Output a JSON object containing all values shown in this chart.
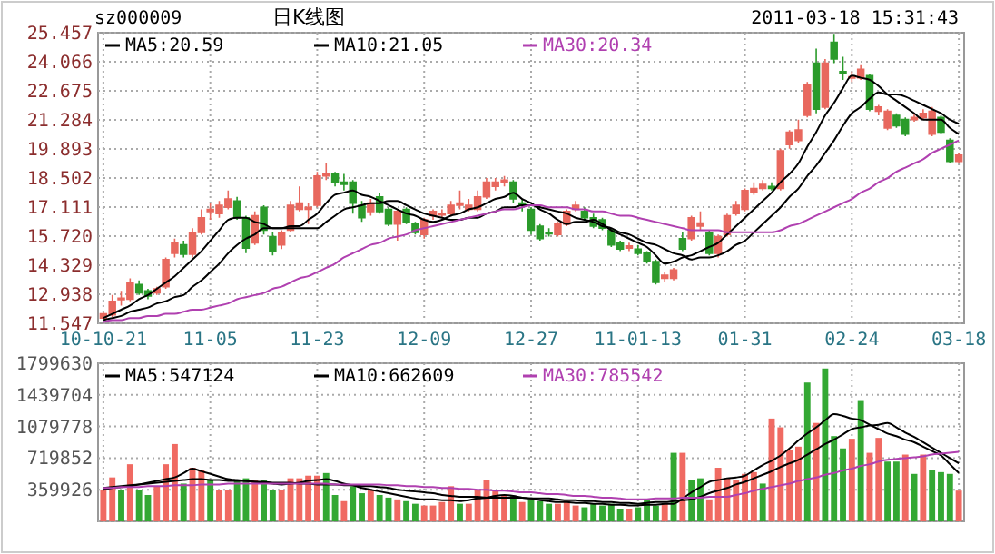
{
  "chart_data": [
    {
      "type": "candlestick",
      "title": "日K线图",
      "annotations": [
        "sz000009",
        "2011-03-18 15:31:43"
      ],
      "categories": [
        "10-10-21",
        null,
        null,
        null,
        null,
        null,
        null,
        null,
        null,
        null,
        null,
        null,
        "11-05",
        null,
        null,
        null,
        null,
        null,
        null,
        null,
        null,
        null,
        null,
        null,
        "11-23",
        null,
        null,
        null,
        null,
        null,
        null,
        null,
        null,
        null,
        null,
        null,
        "12-09",
        null,
        null,
        null,
        null,
        null,
        null,
        null,
        null,
        null,
        null,
        null,
        "12-27",
        null,
        null,
        null,
        null,
        null,
        null,
        null,
        null,
        null,
        null,
        null,
        "11-01-13",
        null,
        null,
        null,
        null,
        null,
        null,
        null,
        null,
        null,
        null,
        null,
        "01-31",
        null,
        null,
        null,
        null,
        null,
        null,
        null,
        null,
        null,
        null,
        null,
        "02-24",
        null,
        null,
        null,
        null,
        null,
        null,
        null,
        null,
        null,
        null,
        null,
        "03-18"
      ],
      "ohlc": [
        [
          11.8,
          12.1,
          11.7,
          12.0
        ],
        [
          11.95,
          12.9,
          11.85,
          12.6
        ],
        [
          12.7,
          13.1,
          12.4,
          12.75
        ],
        [
          12.7,
          13.7,
          12.6,
          13.5
        ],
        [
          13.4,
          13.6,
          12.9,
          13.0
        ],
        [
          13.1,
          13.2,
          12.7,
          12.85
        ],
        [
          13.0,
          13.3,
          12.9,
          13.2
        ],
        [
          13.3,
          14.7,
          13.2,
          14.6
        ],
        [
          14.9,
          15.6,
          14.7,
          15.4
        ],
        [
          15.3,
          15.5,
          14.7,
          14.85
        ],
        [
          14.85,
          16.1,
          14.7,
          15.9
        ],
        [
          15.9,
          17.0,
          15.8,
          16.6
        ],
        [
          16.9,
          17.3,
          16.5,
          17.0
        ],
        [
          16.8,
          17.4,
          16.6,
          17.2
        ],
        [
          17.1,
          17.9,
          17.0,
          17.5
        ],
        [
          17.4,
          17.6,
          16.5,
          16.6
        ],
        [
          16.6,
          16.7,
          14.9,
          15.15
        ],
        [
          15.4,
          16.9,
          15.3,
          16.7
        ],
        [
          17.1,
          17.2,
          15.8,
          16.0
        ],
        [
          15.7,
          15.9,
          14.8,
          15.0
        ],
        [
          15.3,
          16.0,
          15.1,
          15.9
        ],
        [
          16.0,
          17.4,
          15.9,
          17.2
        ],
        [
          17.0,
          18.1,
          16.9,
          17.3
        ],
        [
          17.0,
          17.3,
          16.3,
          17.1
        ],
        [
          17.2,
          18.8,
          17.1,
          18.6
        ],
        [
          18.6,
          19.2,
          18.4,
          18.7
        ],
        [
          18.7,
          18.8,
          18.1,
          18.3
        ],
        [
          18.3,
          18.7,
          17.9,
          18.2
        ],
        [
          18.3,
          18.4,
          16.8,
          17.3
        ],
        [
          17.2,
          17.4,
          16.4,
          16.6
        ],
        [
          16.9,
          17.5,
          16.7,
          17.3
        ],
        [
          17.6,
          17.8,
          16.8,
          16.9
        ],
        [
          17.0,
          17.1,
          16.2,
          16.3
        ],
        [
          16.3,
          17.0,
          15.5,
          16.9
        ],
        [
          17.0,
          17.1,
          16.3,
          16.4
        ],
        [
          16.3,
          16.4,
          15.8,
          15.9
        ],
        [
          15.8,
          16.6,
          15.6,
          16.5
        ],
        [
          16.7,
          17.0,
          16.5,
          16.9
        ],
        [
          16.75,
          17.0,
          16.6,
          16.8
        ],
        [
          16.8,
          17.4,
          16.7,
          17.2
        ],
        [
          17.2,
          17.9,
          17.0,
          17.3
        ],
        [
          17.0,
          17.5,
          16.9,
          17.2
        ],
        [
          17.0,
          17.9,
          16.9,
          17.6
        ],
        [
          17.6,
          18.5,
          17.5,
          18.3
        ],
        [
          18.1,
          18.5,
          17.9,
          18.3
        ],
        [
          18.3,
          18.6,
          18.1,
          18.4
        ],
        [
          18.3,
          18.4,
          17.3,
          17.5
        ],
        [
          17.3,
          17.5,
          16.9,
          17.2
        ],
        [
          17.0,
          17.1,
          15.8,
          16.0
        ],
        [
          16.2,
          16.3,
          15.5,
          15.6
        ],
        [
          15.9,
          16.1,
          15.7,
          15.85
        ],
        [
          15.8,
          16.4,
          15.7,
          16.3
        ],
        [
          16.3,
          17.0,
          16.2,
          16.9
        ],
        [
          17.0,
          17.4,
          16.9,
          17.2
        ],
        [
          16.9,
          17.1,
          16.5,
          16.6
        ],
        [
          16.6,
          16.8,
          16.1,
          16.2
        ],
        [
          16.5,
          16.6,
          16.0,
          16.1
        ],
        [
          16.0,
          16.1,
          15.2,
          15.3
        ],
        [
          15.4,
          15.5,
          15.0,
          15.1
        ],
        [
          15.15,
          15.4,
          15.0,
          15.25
        ],
        [
          15.1,
          15.3,
          14.8,
          14.9
        ],
        [
          14.9,
          15.0,
          14.4,
          14.5
        ],
        [
          14.5,
          14.6,
          13.4,
          13.5
        ],
        [
          13.7,
          14.0,
          13.5,
          13.85
        ],
        [
          13.7,
          14.2,
          13.6,
          14.1
        ],
        [
          15.6,
          15.9,
          15.0,
          15.1
        ],
        [
          15.6,
          16.7,
          15.5,
          16.6
        ],
        [
          16.2,
          16.9,
          16.0,
          16.35
        ],
        [
          15.9,
          16.0,
          14.8,
          14.9
        ],
        [
          14.9,
          15.8,
          14.7,
          15.7
        ],
        [
          15.8,
          16.8,
          15.7,
          16.7
        ],
        [
          16.8,
          17.4,
          16.7,
          17.2
        ],
        [
          17.0,
          18.0,
          16.9,
          17.9
        ],
        [
          17.8,
          18.3,
          17.7,
          18.0
        ],
        [
          18.0,
          18.4,
          17.9,
          18.2
        ],
        [
          18.1,
          18.3,
          17.9,
          18.0
        ],
        [
          18.0,
          19.9,
          17.9,
          19.8
        ],
        [
          20.1,
          20.8,
          19.9,
          20.7
        ],
        [
          20.3,
          21.3,
          20.2,
          20.8
        ],
        [
          21.5,
          23.1,
          21.4,
          22.95
        ],
        [
          24.0,
          24.7,
          21.6,
          21.8
        ],
        [
          21.9,
          24.2,
          21.8,
          24.0
        ],
        [
          25.0,
          25.4,
          24.0,
          24.2
        ],
        [
          23.6,
          24.3,
          23.2,
          23.5
        ],
        [
          23.3,
          23.6,
          23.1,
          23.35
        ],
        [
          23.3,
          23.9,
          23.2,
          23.7
        ],
        [
          23.4,
          23.5,
          21.7,
          21.8
        ],
        [
          21.7,
          22.0,
          21.5,
          21.9
        ],
        [
          20.9,
          21.8,
          20.8,
          21.7
        ],
        [
          21.5,
          21.6,
          20.9,
          21.0
        ],
        [
          21.3,
          21.4,
          20.5,
          20.6
        ],
        [
          21.3,
          21.6,
          21.2,
          21.4
        ],
        [
          21.4,
          21.8,
          21.3,
          21.6
        ],
        [
          20.6,
          21.9,
          20.5,
          21.7
        ],
        [
          21.4,
          21.5,
          20.6,
          20.7
        ],
        [
          20.3,
          20.4,
          19.2,
          19.3
        ],
        [
          19.3,
          19.7,
          19.2,
          19.6
        ]
      ],
      "colors": [
        "#e8685e",
        "#e8685e",
        "#e8685e",
        "#e8685e",
        "#2b9b2b",
        "#2b9b2b",
        "#e8685e",
        "#e8685e",
        "#e8685e",
        "#2b9b2b",
        "#e8685e",
        "#e8685e",
        "#e8685e",
        "#e8685e",
        "#e8685e",
        "#2b9b2b",
        "#2b9b2b",
        "#e8685e",
        "#2b9b2b",
        "#2b9b2b",
        "#e8685e",
        "#e8685e",
        "#e8685e",
        "#e8685e",
        "#e8685e",
        "#e8685e",
        "#2b9b2b",
        "#2b9b2b",
        "#2b9b2b",
        "#2b9b2b",
        "#e8685e",
        "#2b9b2b",
        "#2b9b2b",
        "#e8685e",
        "#2b9b2b",
        "#2b9b2b",
        "#e8685e",
        "#e8685e",
        "#e8685e",
        "#e8685e",
        "#e8685e",
        "#e8685e",
        "#e8685e",
        "#e8685e",
        "#e8685e",
        "#e8685e",
        "#2b9b2b",
        "#2b9b2b",
        "#2b9b2b",
        "#2b9b2b",
        "#2b9b2b",
        "#e8685e",
        "#e8685e",
        "#e8685e",
        "#2b9b2b",
        "#2b9b2b",
        "#2b9b2b",
        "#2b9b2b",
        "#2b9b2b",
        "#e8685e",
        "#2b9b2b",
        "#2b9b2b",
        "#2b9b2b",
        "#e8685e",
        "#e8685e",
        "#2b9b2b",
        "#e8685e",
        "#e8685e",
        "#2b9b2b",
        "#e8685e",
        "#e8685e",
        "#e8685e",
        "#e8685e",
        "#e8685e",
        "#e8685e",
        "#2b9b2b",
        "#e8685e",
        "#e8685e",
        "#e8685e",
        "#e8685e",
        "#2b9b2b",
        "#e8685e",
        "#2b9b2b",
        "#2b9b2b",
        "#e8685e",
        "#e8685e",
        "#2b9b2b",
        "#e8685e",
        "#e8685e",
        "#2b9b2b",
        "#2b9b2b",
        "#e8685e",
        "#e8685e",
        "#e8685e",
        "#2b9b2b",
        "#2b9b2b",
        "#e8685e"
      ],
      "series": [
        {
          "type": "line",
          "name": "MA5:20.59",
          "color": "#000000",
          "values": [
            11.8,
            12.0,
            12.2,
            12.4,
            12.7,
            12.9,
            13.2,
            13.5,
            13.8,
            14.2,
            14.6,
            15.0,
            15.5,
            16.0,
            16.5,
            16.6,
            16.6,
            16.4,
            16.3,
            16.1,
            16.1,
            16.2,
            16.2,
            16.5,
            16.8,
            17.3,
            17.7,
            17.8,
            17.9,
            17.7,
            17.6,
            17.4,
            17.2,
            17.0,
            16.8,
            16.7,
            16.5,
            16.4,
            16.5,
            16.7,
            16.8,
            17.0,
            17.1,
            17.3,
            17.5,
            17.6,
            17.8,
            17.5,
            17.3,
            17.0,
            16.8,
            16.5,
            16.3,
            16.4,
            16.4,
            16.5,
            16.3,
            16.0,
            15.8,
            15.6,
            15.4,
            15.2,
            14.8,
            14.4,
            14.5,
            14.7,
            14.8,
            15.0,
            15.2,
            15.4,
            15.8,
            16.2,
            16.6,
            17.0,
            17.4,
            17.8,
            18.3,
            18.7,
            19.2,
            20.0,
            20.7,
            21.5,
            22.1,
            22.8,
            23.4,
            23.3,
            23.2,
            22.9,
            22.5,
            22.2,
            21.9,
            21.6,
            21.3,
            21.3,
            21.3,
            20.9,
            20.6
          ]
        },
        {
          "type": "line",
          "name": "MA10:21.05",
          "color": "#000000",
          "values": [
            11.7,
            11.8,
            11.9,
            12.1,
            12.2,
            12.3,
            12.5,
            12.6,
            12.8,
            12.9,
            13.3,
            13.6,
            14.0,
            14.4,
            14.9,
            15.3,
            15.6,
            15.8,
            16.1,
            16.1,
            16.1,
            16.1,
            16.1,
            16.1,
            16.1,
            16.4,
            16.7,
            17.0,
            17.1,
            17.2,
            17.3,
            17.3,
            17.4,
            17.4,
            17.2,
            17.0,
            16.8,
            16.7,
            16.6,
            16.5,
            16.5,
            16.6,
            16.6,
            16.8,
            16.9,
            17.1,
            17.1,
            17.2,
            17.2,
            17.1,
            17.0,
            16.9,
            16.8,
            16.6,
            16.5,
            16.4,
            16.2,
            16.1,
            15.9,
            15.8,
            15.6,
            15.4,
            15.3,
            15.1,
            14.9,
            14.8,
            14.6,
            14.7,
            14.7,
            14.8,
            15.0,
            15.3,
            15.5,
            15.9,
            16.3,
            16.7,
            17.1,
            17.6,
            18.0,
            18.6,
            19.1,
            19.7,
            20.3,
            21.0,
            21.6,
            21.9,
            22.3,
            22.6,
            22.5,
            22.5,
            22.4,
            22.2,
            22.0,
            21.8,
            21.6,
            21.3,
            21.1
          ]
        },
        {
          "type": "line",
          "name": "MA30:20.34",
          "color": "#b040b0",
          "values": [
            11.6,
            11.7,
            11.7,
            11.8,
            11.8,
            11.9,
            11.9,
            12.0,
            12.0,
            12.1,
            12.2,
            12.2,
            12.3,
            12.4,
            12.5,
            12.7,
            12.8,
            12.9,
            13.0,
            13.2,
            13.3,
            13.5,
            13.7,
            13.8,
            14.0,
            14.2,
            14.4,
            14.7,
            14.9,
            15.1,
            15.3,
            15.4,
            15.6,
            15.7,
            15.8,
            16.0,
            16.1,
            16.2,
            16.3,
            16.4,
            16.5,
            16.6,
            16.7,
            16.8,
            16.9,
            17.0,
            17.0,
            17.1,
            17.2,
            17.2,
            17.1,
            17.1,
            17.1,
            17.0,
            17.0,
            16.9,
            16.9,
            16.8,
            16.7,
            16.7,
            16.6,
            16.5,
            16.4,
            16.3,
            16.2,
            16.1,
            16.0,
            16.0,
            16.0,
            16.0,
            15.9,
            15.9,
            15.9,
            15.9,
            15.9,
            15.9,
            16.0,
            16.2,
            16.3,
            16.5,
            16.7,
            16.9,
            17.1,
            17.3,
            17.5,
            17.8,
            18.0,
            18.3,
            18.5,
            18.8,
            19.0,
            19.2,
            19.4,
            19.7,
            19.9,
            20.1,
            20.3
          ]
        }
      ],
      "ylim": [
        11.547,
        25.457
      ],
      "yticks": [
        11.547,
        12.938,
        14.329,
        {
          "value": 15.72,
          "label": "15.720"
        },
        17.111,
        18.502,
        19.893,
        21.284,
        22.675,
        24.066,
        25.457
      ],
      "grid": true,
      "legend": "top"
    },
    {
      "type": "bar",
      "categories": [
        null,
        null,
        null,
        null,
        null,
        null,
        null,
        null,
        null,
        null,
        null,
        null,
        null,
        null,
        null,
        null,
        null,
        null,
        null,
        null,
        null,
        null,
        null,
        null,
        null,
        null,
        null,
        null,
        null,
        null,
        null,
        null,
        null,
        null,
        null,
        null,
        null,
        null,
        null,
        null,
        null,
        null,
        null,
        null,
        null,
        null,
        null,
        null,
        null,
        null,
        null,
        null,
        null,
        null,
        null,
        null,
        null,
        null,
        null,
        null,
        null,
        null,
        null,
        null,
        null,
        null,
        null,
        null,
        null,
        null,
        null,
        null,
        null,
        null,
        null,
        null,
        null,
        null,
        null,
        null,
        null,
        null,
        null,
        null,
        null,
        null,
        null,
        null,
        null,
        null,
        null,
        null,
        null,
        null,
        null,
        null,
        null
      ],
      "values": [
        360000,
        500000,
        360000,
        650000,
        360000,
        300000,
        400000,
        650000,
        880000,
        430000,
        610000,
        580000,
        470000,
        360000,
        360000,
        470000,
        490000,
        470000,
        470000,
        360000,
        360000,
        490000,
        490000,
        520000,
        520000,
        550000,
        300000,
        230000,
        400000,
        320000,
        360000,
        300000,
        270000,
        250000,
        230000,
        200000,
        180000,
        180000,
        220000,
        400000,
        200000,
        200000,
        360000,
        470000,
        360000,
        300000,
        290000,
        220000,
        250000,
        230000,
        200000,
        200000,
        230000,
        180000,
        160000,
        200000,
        180000,
        200000,
        140000,
        140000,
        160000,
        250000,
        180000,
        200000,
        780000,
        780000,
        470000,
        490000,
        250000,
        610000,
        490000,
        470000,
        540000,
        560000,
        430000,
        1170000,
        1070000,
        810000,
        850000,
        1580000,
        1120000,
        1740000,
        970000,
        830000,
        940000,
        1380000,
        780000,
        950000,
        680000,
        680000,
        760000,
        540000,
        760000,
        580000,
        560000,
        540000,
        350000
      ],
      "colors": [
        "#f06a62",
        "#f06a62",
        "#33a833",
        "#f06a62",
        "#33a833",
        "#33a833",
        "#f06a62",
        "#f06a62",
        "#f06a62",
        "#33a833",
        "#f06a62",
        "#f06a62",
        "#33a833",
        "#f06a62",
        "#f06a62",
        "#33a833",
        "#33a833",
        "#f06a62",
        "#33a833",
        "#33a833",
        "#f06a62",
        "#f06a62",
        "#f06a62",
        "#f06a62",
        "#f06a62",
        "#33a833",
        "#33a833",
        "#f06a62",
        "#33a833",
        "#33a833",
        "#f06a62",
        "#33a833",
        "#33a833",
        "#f06a62",
        "#33a833",
        "#33a833",
        "#f06a62",
        "#f06a62",
        "#f06a62",
        "#f06a62",
        "#33a833",
        "#f06a62",
        "#f06a62",
        "#f06a62",
        "#f06a62",
        "#f06a62",
        "#33a833",
        "#f06a62",
        "#33a833",
        "#33a833",
        "#33a833",
        "#f06a62",
        "#f06a62",
        "#f06a62",
        "#33a833",
        "#33a833",
        "#33a833",
        "#33a833",
        "#33a833",
        "#f06a62",
        "#33a833",
        "#33a833",
        "#33a833",
        "#f06a62",
        "#33a833",
        "#f06a62",
        "#33a833",
        "#33a833",
        "#f06a62",
        "#f06a62",
        "#f06a62",
        "#f06a62",
        "#f06a62",
        "#f06a62",
        "#33a833",
        "#f06a62",
        "#f06a62",
        "#f06a62",
        "#f06a62",
        "#33a833",
        "#f06a62",
        "#33a833",
        "#33a833",
        "#33a833",
        "#f06a62",
        "#33a833",
        "#f06a62",
        "#f06a62",
        "#33a833",
        "#33a833",
        "#f06a62",
        "#33a833",
        "#f06a62",
        "#33a833",
        "#33a833",
        "#33a833",
        "#f06a62"
      ],
      "series": [
        {
          "type": "line",
          "name": "MA5:547124",
          "color": "#000000",
          "values": [
            360000,
            380000,
            390000,
            400000,
            420000,
            440000,
            460000,
            480000,
            500000,
            550000,
            600000,
            570000,
            540000,
            510000,
            480000,
            470000,
            460000,
            450000,
            440000,
            430000,
            420000,
            430000,
            440000,
            460000,
            470000,
            480000,
            460000,
            430000,
            410000,
            380000,
            360000,
            340000,
            320000,
            300000,
            280000,
            260000,
            250000,
            250000,
            240000,
            240000,
            230000,
            240000,
            260000,
            270000,
            290000,
            300000,
            290000,
            270000,
            260000,
            240000,
            230000,
            220000,
            220000,
            210000,
            210000,
            200000,
            200000,
            190000,
            190000,
            180000,
            180000,
            190000,
            190000,
            200000,
            200000,
            260000,
            330000,
            390000,
            450000,
            470000,
            490000,
            500000,
            520000,
            580000,
            640000,
            690000,
            750000,
            830000,
            920000,
            1000000,
            1070000,
            1150000,
            1220000,
            1200000,
            1170000,
            1150000,
            1100000,
            1050000,
            1000000,
            970000,
            930000,
            900000,
            850000,
            800000,
            750000,
            650000,
            550000
          ]
        },
        {
          "type": "line",
          "name": "MA10:662609",
          "color": "#000000",
          "values": [
            380000,
            390000,
            400000,
            410000,
            420000,
            430000,
            440000,
            450000,
            460000,
            470000,
            480000,
            480000,
            470000,
            470000,
            460000,
            460000,
            460000,
            450000,
            450000,
            440000,
            440000,
            440000,
            430000,
            430000,
            420000,
            420000,
            420000,
            410000,
            410000,
            400000,
            400000,
            390000,
            380000,
            360000,
            350000,
            340000,
            330000,
            320000,
            300000,
            290000,
            280000,
            280000,
            280000,
            270000,
            270000,
            270000,
            270000,
            270000,
            260000,
            260000,
            260000,
            250000,
            240000,
            240000,
            230000,
            230000,
            220000,
            220000,
            210000,
            210000,
            200000,
            210000,
            220000,
            220000,
            230000,
            240000,
            250000,
            280000,
            320000,
            350000,
            380000,
            420000,
            450000,
            490000,
            530000,
            570000,
            620000,
            660000,
            700000,
            760000,
            820000,
            880000,
            930000,
            990000,
            1050000,
            1070000,
            1090000,
            1100000,
            1120000,
            1070000,
            1010000,
            960000,
            900000,
            840000,
            780000,
            720000,
            660000
          ]
        },
        {
          "type": "line",
          "name": "MA30:785542",
          "color": "#b040b0",
          "values": [
            380000,
            380000,
            390000,
            390000,
            390000,
            400000,
            400000,
            400000,
            410000,
            410000,
            410000,
            420000,
            420000,
            420000,
            430000,
            430000,
            430000,
            430000,
            430000,
            430000,
            430000,
            430000,
            430000,
            430000,
            430000,
            430000,
            420000,
            420000,
            420000,
            420000,
            420000,
            420000,
            410000,
            410000,
            400000,
            400000,
            390000,
            390000,
            380000,
            380000,
            370000,
            370000,
            360000,
            360000,
            350000,
            350000,
            340000,
            330000,
            330000,
            320000,
            310000,
            310000,
            300000,
            290000,
            290000,
            280000,
            270000,
            270000,
            260000,
            250000,
            250000,
            250000,
            260000,
            260000,
            260000,
            270000,
            270000,
            270000,
            280000,
            280000,
            280000,
            300000,
            320000,
            350000,
            370000,
            390000,
            410000,
            430000,
            460000,
            480000,
            500000,
            530000,
            550000,
            580000,
            600000,
            630000,
            650000,
            680000,
            700000,
            710000,
            720000,
            730000,
            740000,
            760000,
            770000,
            780000,
            790000
          ]
        }
      ],
      "ylim": [
        0,
        1799630
      ],
      "yticks": [
        {
          "value": 0,
          "label": null
        },
        359926,
        719852,
        1079778,
        1439704,
        1799630
      ],
      "tick_labels": "y",
      "grid": true,
      "legend": "top"
    }
  ]
}
